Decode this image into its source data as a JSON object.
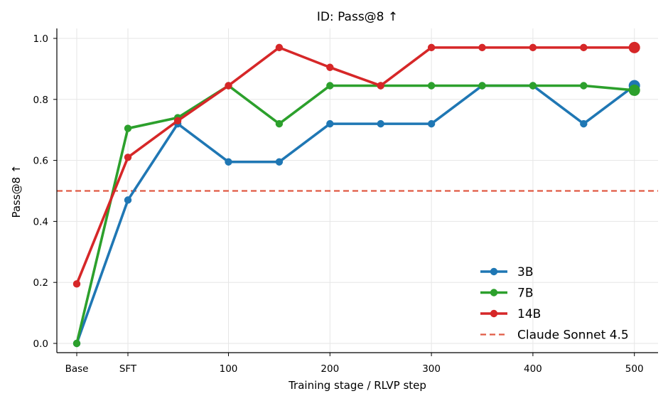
{
  "chart_data": {
    "type": "line",
    "title": "ID: Pass@8 ↑",
    "xlabel": "Training stage / RLVP step",
    "ylabel": "Pass@8 ↑",
    "x_ticks": [
      "Base",
      "SFT",
      "100",
      "200",
      "300",
      "400",
      "500"
    ],
    "y_ticks": [
      "0.0",
      "0.2",
      "0.4",
      "0.6",
      "0.8",
      "1.0"
    ],
    "x": [
      "Base",
      "SFT",
      50,
      100,
      150,
      200,
      250,
      300,
      350,
      400,
      450,
      500
    ],
    "ylim": [
      0,
      1.0
    ],
    "grid": true,
    "legend_position": "lower-right",
    "series": [
      {
        "name": "3B",
        "color": "#1f77b4",
        "values": [
          0.0,
          0.47,
          0.72,
          0.595,
          0.595,
          0.72,
          0.72,
          0.72,
          0.845,
          0.845,
          0.72,
          0.845
        ]
      },
      {
        "name": "7B",
        "color": "#2ca02c",
        "values": [
          0.0,
          0.705,
          0.74,
          0.845,
          0.72,
          0.845,
          0.845,
          0.845,
          0.845,
          0.845,
          0.845,
          0.83
        ]
      },
      {
        "name": "14B",
        "color": "#d62728",
        "values": [
          0.195,
          0.61,
          0.73,
          0.845,
          0.97,
          0.905,
          0.845,
          0.97,
          0.97,
          0.97,
          0.97,
          0.97
        ]
      }
    ],
    "reference_lines": [
      {
        "name": "Claude Sonnet 4.5",
        "value": 0.5,
        "color": "#e05a44",
        "style": "dashed"
      }
    ]
  }
}
